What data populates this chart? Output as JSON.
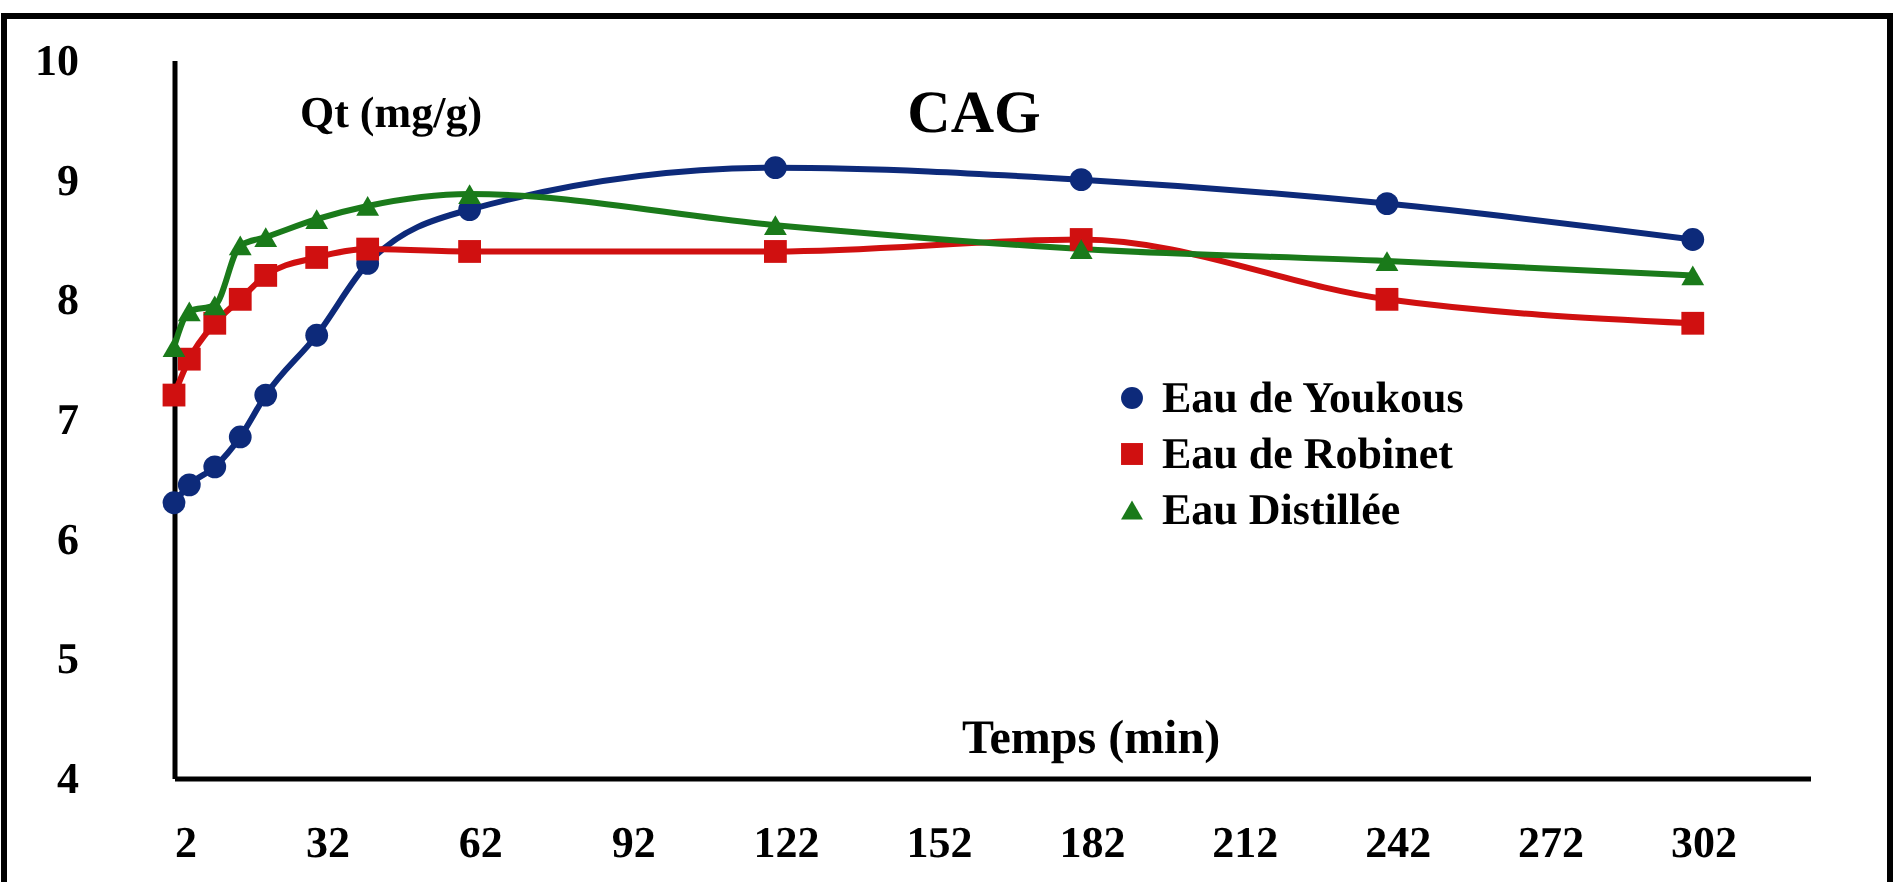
{
  "chart_data": {
    "type": "line",
    "title": "CAG",
    "xlabel": "Temps (min)",
    "ylabel": "Qt (mg/g)",
    "x": [
      2,
      5,
      10,
      15,
      20,
      30,
      40,
      60,
      120,
      180,
      240,
      300
    ],
    "xlim": [
      2,
      323
    ],
    "xticks": [
      2,
      32,
      62,
      92,
      122,
      152,
      182,
      212,
      242,
      272,
      302
    ],
    "ylim": [
      4,
      10
    ],
    "yticks": [
      4,
      5,
      6,
      7,
      8,
      9,
      10
    ],
    "grid": false,
    "legend": "right",
    "line_style": "solid",
    "series": [
      {
        "name": "Eau de Youkous",
        "color": "#0d2a7a",
        "marker": "circle",
        "values": [
          6.3,
          6.45,
          6.6,
          6.85,
          7.2,
          7.7,
          8.3,
          8.75,
          9.1,
          9.0,
          8.8,
          8.5
        ]
      },
      {
        "name": "Eau de Robinet",
        "color": "#d01010",
        "marker": "square",
        "values": [
          7.2,
          7.5,
          7.8,
          8.0,
          8.2,
          8.35,
          8.42,
          8.4,
          8.4,
          8.5,
          8.0,
          7.8
        ]
      },
      {
        "name": "Eau Distillée",
        "color": "#1a7a1a",
        "marker": "triangle",
        "values": [
          7.6,
          7.9,
          7.95,
          8.45,
          8.52,
          8.67,
          8.78,
          8.88,
          8.62,
          8.42,
          8.32,
          8.2
        ]
      }
    ]
  }
}
